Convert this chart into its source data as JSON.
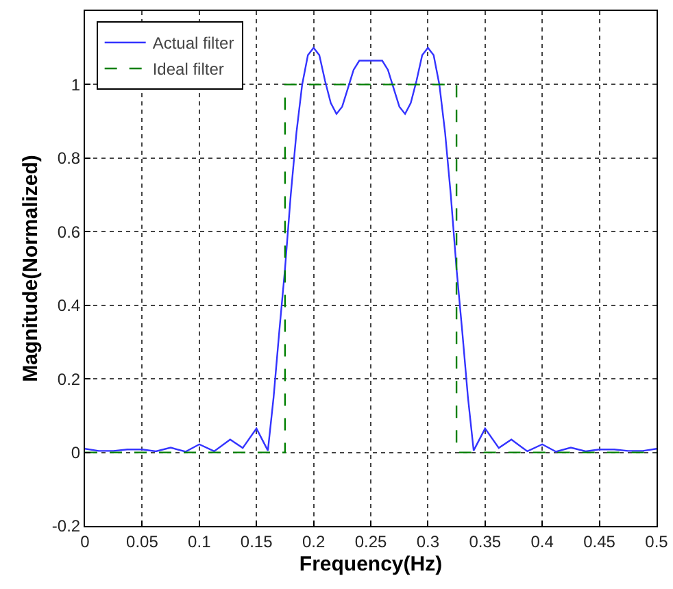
{
  "chart_data": {
    "type": "line",
    "xlabel": "Frequency(Hz)",
    "ylabel": "Magnitude(Normalized)",
    "xlim": [
      0,
      0.5
    ],
    "xticks": [
      0,
      0.05,
      0.1,
      0.15,
      0.2,
      0.25,
      0.3,
      0.35,
      0.4,
      0.45,
      0.5
    ],
    "ylim": [
      -0.2,
      1.2
    ],
    "yticks": [
      -0.2,
      0,
      0.2,
      0.4,
      0.6,
      0.8,
      1
    ],
    "grid": true,
    "legend": "top left",
    "marker": "none",
    "series": [
      {
        "name": "Actual filter",
        "color": "#3333ff",
        "line_style": "solid",
        "x": [
          0,
          0.012,
          0.025,
          0.037,
          0.05,
          0.062,
          0.075,
          0.088,
          0.1,
          0.113,
          0.127,
          0.138,
          0.15,
          0.16,
          0.165,
          0.17,
          0.175,
          0.18,
          0.185,
          0.19,
          0.195,
          0.2,
          0.205,
          0.21,
          0.215,
          0.22,
          0.225,
          0.23,
          0.235,
          0.24,
          0.245,
          0.25,
          0.255,
          0.26,
          0.265,
          0.27,
          0.275,
          0.28,
          0.285,
          0.29,
          0.295,
          0.3,
          0.305,
          0.31,
          0.315,
          0.32,
          0.325,
          0.33,
          0.335,
          0.34,
          0.35,
          0.362,
          0.373,
          0.387,
          0.4,
          0.412,
          0.425,
          0.438,
          0.45,
          0.463,
          0.475,
          0.488,
          0.5
        ],
        "values": [
          0.01,
          0.004,
          0.004,
          0.008,
          0.008,
          0.003,
          0.013,
          0.002,
          0.022,
          0.003,
          0.035,
          0.012,
          0.065,
          0.005,
          0.15,
          0.33,
          0.5,
          0.7,
          0.87,
          1.0,
          1.08,
          1.1,
          1.08,
          1.01,
          0.95,
          0.92,
          0.94,
          0.99,
          1.04,
          1.065,
          1.065,
          1.065,
          1.065,
          1.065,
          1.04,
          0.99,
          0.94,
          0.92,
          0.95,
          1.01,
          1.08,
          1.1,
          1.08,
          1.0,
          0.87,
          0.7,
          0.5,
          0.33,
          0.15,
          0.005,
          0.065,
          0.012,
          0.035,
          0.003,
          0.022,
          0.002,
          0.013,
          0.003,
          0.008,
          0.008,
          0.004,
          0.004,
          0.01
        ]
      },
      {
        "name": "Ideal filter",
        "color": "#008000",
        "line_style": "dashed",
        "x": [
          0,
          0.175,
          0.175,
          0.325,
          0.325,
          0.5
        ],
        "values": [
          0,
          0,
          1,
          1,
          0,
          0
        ]
      }
    ]
  }
}
